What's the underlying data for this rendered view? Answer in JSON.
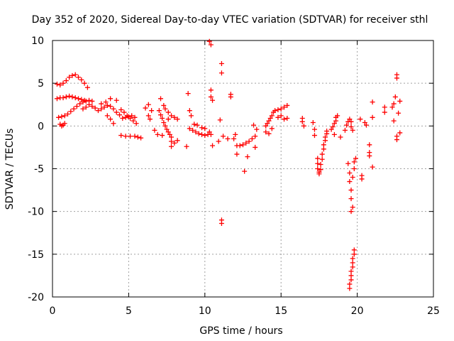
{
  "chart_data": {
    "type": "scatter",
    "title": "Day 352 of 2020, Sidereal Day-to-day VTEC variation (SDTVAR) for receiver sthl",
    "xlabel": "GPS time / hours",
    "ylabel": "SDTVAR / TECUs",
    "xlim": [
      0,
      25
    ],
    "ylim": [
      -20,
      10
    ],
    "xticks": [
      0,
      5,
      10,
      15,
      20,
      25
    ],
    "yticks": [
      -20,
      -15,
      -10,
      -5,
      0,
      5,
      10
    ],
    "grid": true,
    "marker": "+",
    "color": "#ff0000",
    "series": [
      {
        "name": "SDTVAR",
        "points": [
          [
            0.3,
            4.9
          ],
          [
            0.5,
            4.8
          ],
          [
            0.7,
            5.0
          ],
          [
            0.9,
            5.3
          ],
          [
            1.1,
            5.7
          ],
          [
            1.3,
            5.9
          ],
          [
            1.5,
            6.0
          ],
          [
            1.7,
            5.7
          ],
          [
            1.9,
            5.4
          ],
          [
            2.1,
            5.0
          ],
          [
            2.3,
            4.5
          ],
          [
            0.3,
            3.2
          ],
          [
            0.5,
            3.3
          ],
          [
            0.7,
            3.3
          ],
          [
            0.9,
            3.4
          ],
          [
            1.1,
            3.5
          ],
          [
            1.3,
            3.4
          ],
          [
            1.5,
            3.3
          ],
          [
            1.7,
            3.2
          ],
          [
            1.9,
            3.1
          ],
          [
            2.1,
            3.0
          ],
          [
            0.4,
            1.0
          ],
          [
            0.6,
            1.1
          ],
          [
            0.8,
            1.2
          ],
          [
            1.0,
            1.4
          ],
          [
            1.2,
            1.7
          ],
          [
            1.4,
            2.0
          ],
          [
            1.6,
            2.3
          ],
          [
            1.8,
            2.6
          ],
          [
            2.0,
            2.8
          ],
          [
            2.2,
            2.9
          ],
          [
            2.4,
            3.0
          ],
          [
            2.6,
            2.9
          ],
          [
            0.5,
            0.2
          ],
          [
            0.6,
            0.0
          ],
          [
            0.7,
            0.1
          ],
          [
            0.8,
            0.3
          ],
          [
            2.0,
            2.0
          ],
          [
            2.2,
            2.2
          ],
          [
            2.4,
            2.5
          ],
          [
            2.6,
            2.3
          ],
          [
            2.8,
            2.1
          ],
          [
            3.0,
            1.8
          ],
          [
            3.2,
            2.0
          ],
          [
            3.4,
            2.2
          ],
          [
            3.6,
            2.4
          ],
          [
            3.8,
            2.3
          ],
          [
            4.0,
            2.0
          ],
          [
            4.2,
            1.6
          ],
          [
            4.4,
            1.3
          ],
          [
            3.2,
            2.6
          ],
          [
            3.5,
            2.8
          ],
          [
            3.8,
            3.2
          ],
          [
            4.2,
            3.0
          ],
          [
            3.6,
            1.2
          ],
          [
            3.8,
            0.8
          ],
          [
            4.0,
            0.3
          ],
          [
            4.5,
            1.9
          ],
          [
            4.7,
            1.6
          ],
          [
            4.9,
            1.2
          ],
          [
            5.1,
            0.9
          ],
          [
            5.3,
            0.6
          ],
          [
            5.5,
            0.3
          ],
          [
            4.6,
            0.9
          ],
          [
            4.8,
            1.0
          ],
          [
            5.0,
            1.1
          ],
          [
            5.2,
            1.2
          ],
          [
            5.4,
            1.0
          ],
          [
            4.5,
            -1.1
          ],
          [
            4.8,
            -1.2
          ],
          [
            5.1,
            -1.2
          ],
          [
            5.4,
            -1.2
          ],
          [
            5.6,
            -1.3
          ],
          [
            5.8,
            -1.4
          ],
          [
            6.1,
            2.1
          ],
          [
            6.3,
            2.5
          ],
          [
            6.5,
            1.8
          ],
          [
            6.4,
            0.8
          ],
          [
            6.7,
            -0.5
          ],
          [
            6.3,
            1.2
          ],
          [
            7.0,
            1.8
          ],
          [
            7.1,
            1.3
          ],
          [
            7.2,
            0.9
          ],
          [
            7.3,
            0.4
          ],
          [
            7.4,
            0.0
          ],
          [
            7.5,
            -0.4
          ],
          [
            7.6,
            -0.7
          ],
          [
            7.7,
            -1.0
          ],
          [
            7.8,
            -1.3
          ],
          [
            7.1,
            3.2
          ],
          [
            7.3,
            2.4
          ],
          [
            7.4,
            2.0
          ],
          [
            7.6,
            1.6
          ],
          [
            7.8,
            1.2
          ],
          [
            8.0,
            1.0
          ],
          [
            8.2,
            0.8
          ],
          [
            6.9,
            -1.0
          ],
          [
            7.2,
            -1.1
          ],
          [
            7.6,
            0.8
          ],
          [
            7.8,
            -1.8
          ],
          [
            7.8,
            -2.4
          ],
          [
            8.0,
            -2.0
          ],
          [
            8.2,
            -1.7
          ],
          [
            8.9,
            3.8
          ],
          [
            9.0,
            1.8
          ],
          [
            9.1,
            1.2
          ],
          [
            9.0,
            -0.3
          ],
          [
            9.2,
            -0.5
          ],
          [
            9.4,
            -0.7
          ],
          [
            9.6,
            -0.9
          ],
          [
            9.8,
            -1.0
          ],
          [
            10.0,
            -1.1
          ],
          [
            10.2,
            -1.0
          ],
          [
            10.4,
            -1.0
          ],
          [
            9.3,
            0.2
          ],
          [
            9.5,
            0.1
          ],
          [
            9.8,
            -0.2
          ],
          [
            10.0,
            -0.3
          ],
          [
            10.3,
            -0.7
          ],
          [
            8.8,
            -2.4
          ],
          [
            10.5,
            -2.3
          ],
          [
            10.3,
            9.9
          ],
          [
            10.4,
            9.5
          ],
          [
            10.4,
            4.2
          ],
          [
            10.4,
            3.4
          ],
          [
            10.5,
            3.0
          ],
          [
            11.1,
            7.3
          ],
          [
            11.1,
            6.2
          ],
          [
            11.0,
            0.7
          ],
          [
            11.1,
            -11.0
          ],
          [
            11.1,
            -11.4
          ],
          [
            11.7,
            3.7
          ],
          [
            11.7,
            3.4
          ],
          [
            10.9,
            -1.8
          ],
          [
            11.2,
            -1.2
          ],
          [
            11.5,
            -1.5
          ],
          [
            11.9,
            -1.5
          ],
          [
            12.1,
            -2.3
          ],
          [
            12.3,
            -2.3
          ],
          [
            12.5,
            -2.2
          ],
          [
            12.7,
            -2.0
          ],
          [
            12.9,
            -1.8
          ],
          [
            13.1,
            -1.5
          ],
          [
            13.3,
            -1.2
          ],
          [
            12.0,
            -1.0
          ],
          [
            12.1,
            -3.3
          ],
          [
            12.6,
            -5.3
          ],
          [
            12.8,
            -3.6
          ],
          [
            13.3,
            -2.5
          ],
          [
            13.2,
            0.1
          ],
          [
            13.4,
            -0.4
          ],
          [
            14.0,
            0.0
          ],
          [
            14.1,
            0.3
          ],
          [
            14.2,
            0.6
          ],
          [
            14.3,
            0.9
          ],
          [
            14.4,
            1.2
          ],
          [
            14.5,
            1.6
          ],
          [
            14.6,
            1.8
          ],
          [
            14.8,
            1.9
          ],
          [
            15.0,
            2.0
          ],
          [
            15.2,
            2.2
          ],
          [
            15.4,
            2.4
          ],
          [
            14.0,
            -0.7
          ],
          [
            14.2,
            -0.9
          ],
          [
            14.4,
            -0.3
          ],
          [
            14.8,
            1.0
          ],
          [
            15.0,
            1.2
          ],
          [
            15.2,
            0.8
          ],
          [
            15.4,
            0.9
          ],
          [
            16.4,
            0.9
          ],
          [
            16.4,
            0.5
          ],
          [
            16.5,
            0.0
          ],
          [
            17.1,
            0.4
          ],
          [
            17.2,
            -0.4
          ],
          [
            17.2,
            -1.1
          ],
          [
            17.4,
            -3.8
          ],
          [
            17.4,
            -4.4
          ],
          [
            17.4,
            -5.0
          ],
          [
            17.5,
            -5.4
          ],
          [
            17.5,
            -5.6
          ],
          [
            17.6,
            -5.1
          ],
          [
            17.6,
            -4.5
          ],
          [
            17.7,
            -3.9
          ],
          [
            17.7,
            -3.3
          ],
          [
            17.8,
            -2.7
          ],
          [
            17.8,
            -2.2
          ],
          [
            17.9,
            -1.7
          ],
          [
            17.9,
            -1.3
          ],
          [
            18.0,
            -0.9
          ],
          [
            18.0,
            -0.6
          ],
          [
            18.3,
            -0.4
          ],
          [
            18.4,
            -0.1
          ],
          [
            18.5,
            0.3
          ],
          [
            18.6,
            0.6
          ],
          [
            18.6,
            1.0
          ],
          [
            18.7,
            1.2
          ],
          [
            18.5,
            -1.0
          ],
          [
            18.9,
            -1.3
          ],
          [
            19.2,
            -0.5
          ],
          [
            19.3,
            0.1
          ],
          [
            19.4,
            0.5
          ],
          [
            19.5,
            0.8
          ],
          [
            19.6,
            0.5
          ],
          [
            19.6,
            -0.1
          ],
          [
            19.7,
            -0.5
          ],
          [
            19.4,
            -4.4
          ],
          [
            19.5,
            -5.5
          ],
          [
            19.5,
            -6.5
          ],
          [
            19.6,
            -7.5
          ],
          [
            19.6,
            -8.5
          ],
          [
            19.7,
            -9.5
          ],
          [
            19.7,
            -6.0
          ],
          [
            19.8,
            -5.0
          ],
          [
            19.8,
            -4.2
          ],
          [
            19.9,
            -3.8
          ],
          [
            19.6,
            -10.0
          ],
          [
            19.5,
            -19.0
          ],
          [
            19.5,
            -18.5
          ],
          [
            19.6,
            -18.0
          ],
          [
            19.6,
            -17.5
          ],
          [
            19.6,
            -17.0
          ],
          [
            19.7,
            -16.5
          ],
          [
            19.7,
            -16.0
          ],
          [
            19.7,
            -15.5
          ],
          [
            19.8,
            -15.0
          ],
          [
            19.8,
            -14.5
          ],
          [
            20.2,
            0.8
          ],
          [
            20.3,
            -6.2
          ],
          [
            20.3,
            -5.8
          ],
          [
            20.5,
            0.4
          ],
          [
            20.6,
            0.1
          ],
          [
            20.8,
            -2.2
          ],
          [
            20.8,
            -3.1
          ],
          [
            20.8,
            -3.5
          ],
          [
            21.0,
            -4.8
          ],
          [
            21.0,
            2.8
          ],
          [
            21.0,
            1.0
          ],
          [
            21.8,
            1.6
          ],
          [
            21.8,
            2.2
          ],
          [
            22.3,
            2.2
          ],
          [
            22.4,
            0.6
          ],
          [
            22.4,
            2.6
          ],
          [
            22.5,
            3.4
          ],
          [
            22.6,
            6.0
          ],
          [
            22.6,
            5.6
          ],
          [
            22.7,
            1.5
          ],
          [
            22.8,
            2.9
          ],
          [
            22.6,
            -1.2
          ],
          [
            22.6,
            -1.6
          ],
          [
            22.8,
            -0.8
          ]
        ]
      }
    ]
  }
}
